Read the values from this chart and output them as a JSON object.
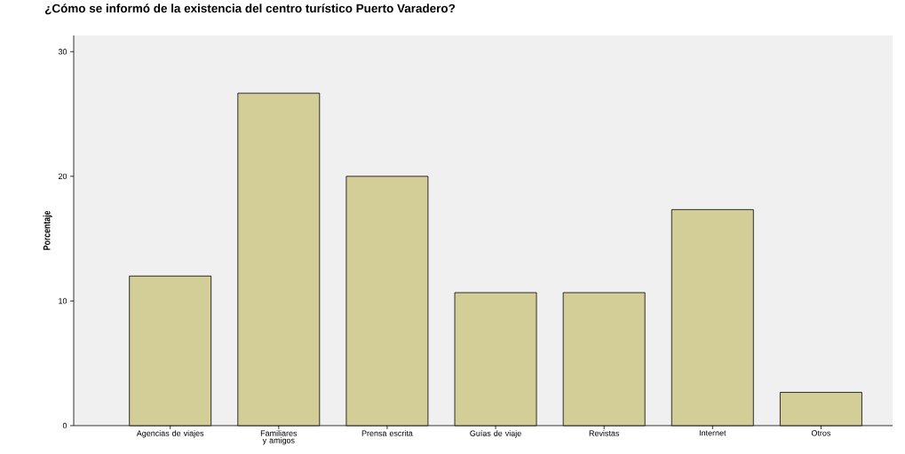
{
  "chart_data": {
    "type": "bar",
    "title": "¿Cómo se informó de la existencia del centro turístico Puerto Varadero?",
    "ylabel": "Porcentaje",
    "categories": [
      "Agencias de viajes",
      "Familiares y amigos",
      "Prensa escrita",
      "Guías de viaje",
      "Revistas",
      "Internet",
      "Otros"
    ],
    "values": [
      12,
      26.67,
      20,
      10.67,
      10.67,
      17.33,
      2.67
    ],
    "color": "#d3ce97",
    "ylim": [
      0,
      31.3
    ],
    "yticks": [
      0,
      10,
      20,
      30
    ],
    "grid": false
  }
}
